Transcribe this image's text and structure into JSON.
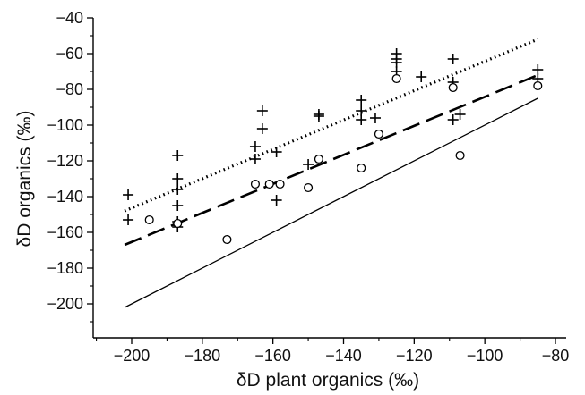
{
  "chart_data": {
    "type": "scatter",
    "xlabel": "δD plant organics (‰)",
    "ylabel": "δD organics (‰)",
    "xlim": [
      -212,
      -78
    ],
    "ylim": [
      -220,
      -40
    ],
    "xticks": [
      -200,
      -180,
      -160,
      -140,
      -120,
      -100,
      -80
    ],
    "yticks": [
      -40,
      -60,
      -80,
      -100,
      -120,
      -140,
      -160,
      -180,
      -200
    ],
    "xtick_labels": [
      "−200",
      "−180",
      "−160",
      "−140",
      "−120",
      "−100",
      "−80"
    ],
    "ytick_labels": [
      "−40",
      "−60",
      "−80",
      "−100",
      "−120",
      "−140",
      "−160",
      "−180",
      "−200"
    ],
    "grid": false,
    "legend": "none",
    "series": [
      {
        "marker": "plus",
        "points": [
          [
            -201,
            -139
          ],
          [
            -201,
            -153
          ],
          [
            -187,
            -117
          ],
          [
            -187,
            -130
          ],
          [
            -187,
            -136
          ],
          [
            -187,
            -145
          ],
          [
            -187,
            -154
          ],
          [
            -187,
            -157
          ],
          [
            -165,
            -112
          ],
          [
            -165,
            -119
          ],
          [
            -163,
            -92
          ],
          [
            -163,
            -102
          ],
          [
            -159,
            -115
          ],
          [
            -159,
            -142
          ],
          [
            -147,
            -94
          ],
          [
            -147,
            -95
          ],
          [
            -150,
            -122
          ],
          [
            -135,
            -86
          ],
          [
            -135,
            -92
          ],
          [
            -135,
            -97
          ],
          [
            -131,
            -96
          ],
          [
            -125,
            -60
          ],
          [
            -125,
            -63
          ],
          [
            -125,
            -65
          ],
          [
            -125,
            -70
          ],
          [
            -118,
            -73
          ],
          [
            -109,
            -63
          ],
          [
            -109,
            -76
          ],
          [
            -109,
            -97
          ],
          [
            -107,
            -94
          ],
          [
            -85,
            -69
          ],
          [
            -85,
            -74
          ]
        ]
      },
      {
        "marker": "circle",
        "points": [
          [
            -195,
            -153
          ],
          [
            -187,
            -155
          ],
          [
            -173,
            -164
          ],
          [
            -165,
            -133
          ],
          [
            -161,
            -133
          ],
          [
            -158,
            -133
          ],
          [
            -150,
            -135
          ],
          [
            -147,
            -119
          ],
          [
            -135,
            -124
          ],
          [
            -130,
            -105
          ],
          [
            -125,
            -74
          ],
          [
            -109,
            -79
          ],
          [
            -107,
            -117
          ],
          [
            -85,
            -78
          ]
        ]
      }
    ],
    "lines": [
      {
        "style": "dotted",
        "x": [
          -202,
          -85
        ],
        "y": [
          -148,
          -52
        ]
      },
      {
        "style": "dashed",
        "x": [
          -202,
          -85
        ],
        "y": [
          -167,
          -72
        ]
      },
      {
        "style": "solid",
        "x": [
          -202,
          -85
        ],
        "y": [
          -202,
          -85
        ]
      }
    ]
  }
}
